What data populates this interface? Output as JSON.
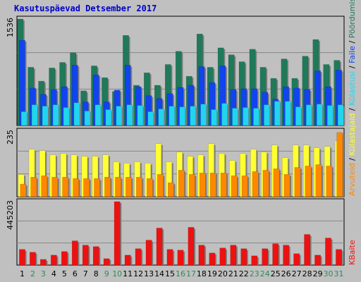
{
  "chart_data": {
    "type": "bar",
    "title": "Kasutuspäevad Detsember 2017",
    "categories": [
      "1",
      "2",
      "3",
      "4",
      "5",
      "6",
      "7",
      "8",
      "9",
      "10",
      "11",
      "12",
      "13",
      "14",
      "15",
      "16",
      "17",
      "18",
      "19",
      "20",
      "21",
      "22",
      "23",
      "24",
      "25",
      "26",
      "27",
      "28",
      "29",
      "30",
      "31"
    ],
    "weekend_categories": [
      "2",
      "3",
      "9",
      "10",
      "16",
      "17",
      "23",
      "24",
      "30",
      "31"
    ],
    "colors": {
      "Pöördumisi": "#1f7a5a",
      "Faile": "#1144ee",
      "Külastusi": "#22d4ee",
      "Külastajaid": "#ffff33",
      "Arvuteid": "#ff8800",
      "KBaite": "#ee1111",
      "weekday_label": "#000000",
      "weekend_label": "#2e8b57"
    },
    "panels": [
      {
        "ymax_label": "1536",
        "ylim": [
          0,
          1536
        ],
        "series": [
          {
            "name": "Pöördumisi",
            "values": [
              1536,
              840,
              640,
              830,
              910,
              1050,
              500,
              860,
              690,
              490,
              1300,
              580,
              760,
              580,
              880,
              1070,
              710,
              1320,
              840,
              1120,
              1020,
              920,
              1100,
              840,
              680,
              960,
              680,
              1000,
              1240,
              880,
              940
            ]
          },
          {
            "name": "Faile",
            "values": [
              1230,
              540,
              450,
              520,
              560,
              870,
              340,
              730,
              340,
              510,
              870,
              560,
              430,
              390,
              460,
              550,
              580,
              850,
              620,
              860,
              520,
              530,
              530,
              480,
              380,
              560,
              540,
              520,
              790,
              560,
              800
            ]
          },
          {
            "name": "Külastusi",
            "values": [
              200,
              300,
              280,
              300,
              260,
              330,
              210,
              300,
              230,
              280,
              300,
              290,
              200,
              240,
              280,
              270,
              280,
              310,
              230,
              320,
              250,
              260,
              250,
              300,
              350,
              350,
              270,
              300,
              310,
              290,
              300
            ]
          }
        ]
      },
      {
        "ymax_label": "235",
        "ylim": [
          0,
          235
        ],
        "series": [
          {
            "name": "Külastajaid",
            "values": [
              80,
              170,
              165,
              150,
              155,
              150,
              145,
              145,
              150,
              125,
              120,
              125,
              120,
              190,
              125,
              160,
              145,
              150,
              190,
              155,
              130,
              155,
              170,
              160,
              185,
              140,
              185,
              185,
              175,
              180,
              200
            ]
          },
          {
            "name": "Arvuteid",
            "values": [
              45,
              70,
              75,
              70,
              70,
              65,
              65,
              65,
              70,
              70,
              70,
              70,
              65,
              80,
              50,
              95,
              80,
              85,
              85,
              85,
              75,
              75,
              90,
              95,
              100,
              80,
              105,
              110,
              115,
              110,
              230
            ]
          }
        ]
      },
      {
        "ymax_label": "445203",
        "ylim": [
          0,
          445203
        ],
        "series": [
          {
            "name": "KBaite",
            "values": [
              110000,
              90000,
              40000,
              70000,
              95000,
              170000,
              140000,
              130000,
              45000,
              445203,
              70000,
              115000,
              175000,
              260000,
              110000,
              105000,
              265000,
              140000,
              85000,
              120000,
              140000,
              115000,
              65000,
              115000,
              150000,
              140000,
              80000,
              215000,
              70000,
              190000,
              110000
            ]
          }
        ]
      }
    ],
    "legend_right": [
      {
        "label": "Arvuteid",
        "color": "#ff8800"
      },
      {
        "label": " / ",
        "color": "#000000"
      },
      {
        "label": "Külastajaid",
        "color": "#ffff33"
      },
      {
        "label": " / ",
        "color": "#000000"
      },
      {
        "label": "Külastusi",
        "color": "#22d4ee"
      },
      {
        "label": " / ",
        "color": "#000000"
      },
      {
        "label": "Faile",
        "color": "#1144ee"
      },
      {
        "label": " / ",
        "color": "#000000"
      },
      {
        "label": "Pöördumisi",
        "color": "#1f7a5a"
      }
    ],
    "legend_bottom": [
      {
        "label": "KBaite",
        "color": "#ee1111"
      }
    ]
  }
}
